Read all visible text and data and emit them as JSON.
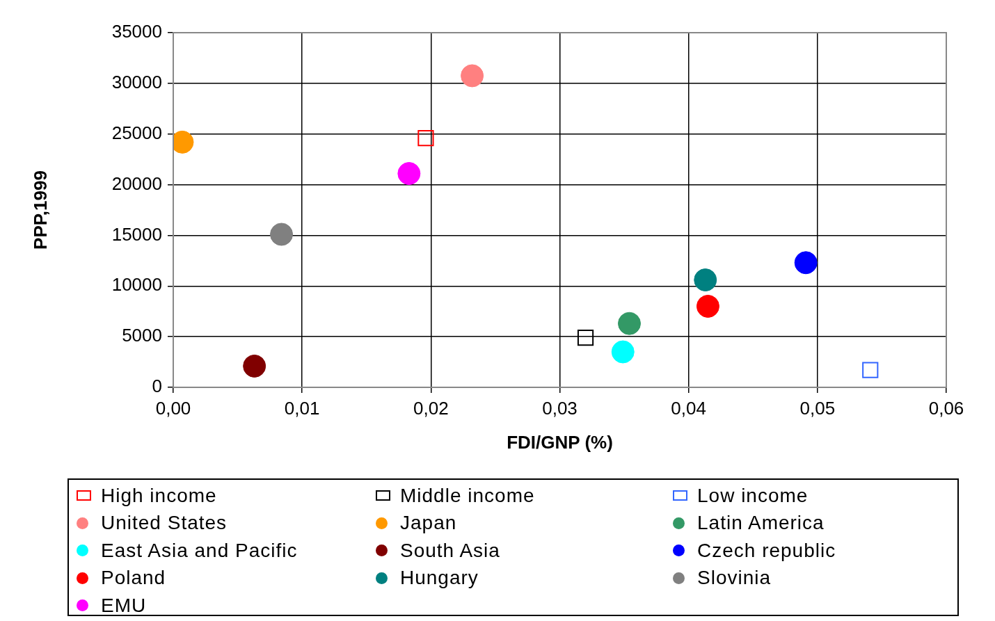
{
  "chart_data": {
    "type": "scatter",
    "xlabel": "FDI/GNP (%)",
    "ylabel": "PPP,1999",
    "xlim": [
      0,
      0.06
    ],
    "xticks": [
      {
        "value": 0,
        "label": "0,00"
      },
      {
        "value": 0.01,
        "label": "0,01"
      },
      {
        "value": 0.02,
        "label": "0,02"
      },
      {
        "value": 0.03,
        "label": "0,03"
      },
      {
        "value": 0.04,
        "label": "0,04"
      },
      {
        "value": 0.05,
        "label": "0,05"
      },
      {
        "value": 0.06,
        "label": "0,06"
      }
    ],
    "ylim": [
      0,
      35000
    ],
    "yticks": [
      0,
      5000,
      10000,
      15000,
      20000,
      25000,
      30000,
      35000
    ],
    "grid": true,
    "legend": "bottom",
    "series": [
      {
        "name": "High income",
        "color": "#ff0000",
        "marker": "square",
        "x": [
          0.0196
        ],
        "values": [
          24600
        ]
      },
      {
        "name": "Middle income",
        "color": "#000000",
        "marker": "square",
        "x": [
          0.032
        ],
        "values": [
          4900
        ]
      },
      {
        "name": "Low income",
        "color": "#3366ff",
        "marker": "square",
        "x": [
          0.0541
        ],
        "values": [
          1700
        ]
      },
      {
        "name": "United States",
        "color": "#ff8080",
        "marker": "circle",
        "x": [
          0.0232
        ],
        "values": [
          30750
        ]
      },
      {
        "name": "Japan",
        "color": "#ff9900",
        "marker": "circle",
        "x": [
          0.0007
        ],
        "values": [
          24200
        ]
      },
      {
        "name": "Latin America",
        "color": "#339966",
        "marker": "circle",
        "x": [
          0.0354
        ],
        "values": [
          6300
        ]
      },
      {
        "name": "East Asia and Pacific",
        "color": "#00ffff",
        "marker": "circle",
        "x": [
          0.0349
        ],
        "values": [
          3500
        ]
      },
      {
        "name": "South Asia",
        "color": "#800000",
        "marker": "circle",
        "x": [
          0.0063
        ],
        "values": [
          2100
        ]
      },
      {
        "name": "Czech republic",
        "color": "#0000ff",
        "marker": "circle",
        "x": [
          0.0491
        ],
        "values": [
          12300
        ]
      },
      {
        "name": "Poland",
        "color": "#ff0000",
        "marker": "circle",
        "x": [
          0.0415
        ],
        "values": [
          8000
        ]
      },
      {
        "name": "Hungary",
        "color": "#008080",
        "marker": "circle",
        "x": [
          0.0413
        ],
        "values": [
          10600
        ]
      },
      {
        "name": "Slovinia",
        "color": "#808080",
        "marker": "circle",
        "x": [
          0.0084
        ],
        "values": [
          15100
        ]
      },
      {
        "name": "EMU",
        "color": "#ff00ff",
        "marker": "circle",
        "x": [
          0.0183
        ],
        "values": [
          21100
        ]
      }
    ]
  }
}
